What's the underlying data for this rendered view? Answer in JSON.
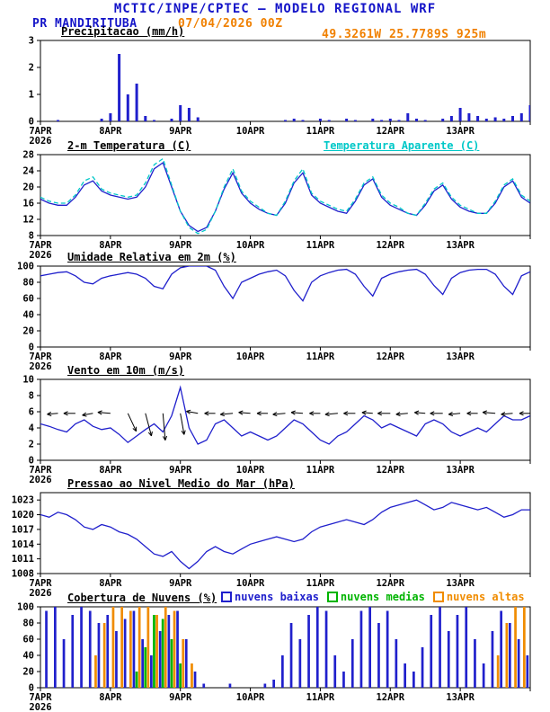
{
  "header": {
    "title": "MCTIC/INPE/CPTEC — MODELO REGIONAL WRF",
    "station": "PR MANDIRITUBA",
    "run_datetime": "07/04/2026 00Z",
    "location": "49.3261W 25.7789S 925m"
  },
  "colors": {
    "title_blue": "#1414c8",
    "accent_orange": "#f08000",
    "line_blue": "#2020cc",
    "apparent_cyan": "#00c8c8",
    "cloud_low_blue": "#2020cc",
    "cloud_mid_green": "#00b400",
    "cloud_high_orange": "#f08c00",
    "axis_black": "#000000"
  },
  "x_axis": {
    "tick_labels": [
      "7APR",
      "8APR",
      "9APR",
      "10APR",
      "11APR",
      "12APR",
      "13APR"
    ],
    "year_label": "2026",
    "hours_total": 168,
    "step_hours": 3
  },
  "chart_data": [
    {
      "id": "precip",
      "type": "bar",
      "title": "Precipitacao (mm/h)",
      "ylim": [
        0,
        3
      ],
      "yticks": [
        0,
        1,
        2,
        3
      ],
      "series": [
        {
          "name": "precipitacao",
          "color": "#2020cc",
          "values": [
            0,
            0,
            0.05,
            0,
            0,
            0,
            0,
            0.1,
            0.3,
            2.5,
            1,
            1.4,
            0.2,
            0.05,
            0,
            0.1,
            0.6,
            0.5,
            0.15,
            0,
            0,
            0,
            0,
            0,
            0,
            0,
            0,
            0,
            0.05,
            0.1,
            0.05,
            0,
            0.1,
            0.05,
            0,
            0.1,
            0.05,
            0,
            0.1,
            0.05,
            0.1,
            0.05,
            0.3,
            0.1,
            0.05,
            0,
            0.1,
            0.2,
            0.5,
            0.3,
            0.2,
            0.1,
            0.15,
            0.1,
            0.2,
            0.3,
            0.6
          ]
        }
      ]
    },
    {
      "id": "temp2m",
      "type": "line",
      "title": "2-m Temperatura (C)",
      "right_title": "Temperatura Aparente (C)",
      "ylim": [
        8,
        28
      ],
      "yticks": [
        8,
        12,
        16,
        20,
        24,
        28
      ],
      "series": [
        {
          "name": "temperatura-2m",
          "color": "#2020cc",
          "values": [
            17,
            16,
            15.5,
            15.5,
            17.5,
            20.5,
            21.5,
            19,
            18,
            17.5,
            17,
            17.5,
            20,
            24.5,
            26,
            20,
            14,
            10.5,
            9,
            10,
            14,
            19.5,
            23.5,
            18.5,
            16,
            14.5,
            13.5,
            13,
            16,
            21,
            23.5,
            18,
            16,
            15,
            14,
            13.5,
            16.5,
            20.5,
            22,
            17.5,
            15.5,
            14.5,
            13.5,
            13,
            15.5,
            19,
            20.5,
            17,
            15,
            14,
            13.5,
            13.5,
            16,
            20,
            21.5,
            17.5,
            16
          ]
        },
        {
          "name": "temperatura-aparente",
          "color": "#00c8c8",
          "dash": "5 3",
          "values": [
            17.5,
            16.5,
            16,
            16,
            18,
            21.5,
            22.5,
            19.5,
            18.5,
            18,
            17.5,
            18,
            21,
            25.5,
            27,
            20.5,
            14,
            10,
            8.5,
            9.5,
            14,
            20,
            24.5,
            19,
            16.5,
            15,
            13.5,
            13,
            16.5,
            21.5,
            24.5,
            18.5,
            16.5,
            15.5,
            14.5,
            14,
            17,
            21,
            22.5,
            18,
            16,
            15,
            13.5,
            13,
            16,
            19.5,
            21,
            17.5,
            15.5,
            14.5,
            13.5,
            13.5,
            16.5,
            20.5,
            22,
            18,
            16.5
          ]
        }
      ]
    },
    {
      "id": "rh2m",
      "type": "line",
      "title": "Umidade Relativa em 2m (%)",
      "ylim": [
        0,
        100
      ],
      "yticks": [
        0,
        20,
        40,
        60,
        80,
        100
      ],
      "series": [
        {
          "name": "umidade-relativa",
          "color": "#2020cc",
          "values": [
            88,
            90,
            92,
            93,
            88,
            80,
            78,
            85,
            88,
            90,
            92,
            90,
            85,
            75,
            72,
            90,
            98,
            100,
            100,
            100,
            95,
            75,
            60,
            80,
            85,
            90,
            93,
            95,
            88,
            70,
            57,
            80,
            88,
            92,
            95,
            96,
            90,
            75,
            63,
            85,
            90,
            93,
            95,
            96,
            90,
            76,
            65,
            85,
            92,
            95,
            96,
            96,
            90,
            75,
            65,
            88,
            93
          ]
        }
      ]
    },
    {
      "id": "wind10m",
      "type": "line",
      "title": "Vento em 10m (m/s)",
      "ylim": [
        0,
        10
      ],
      "yticks": [
        0,
        2,
        4,
        6,
        8,
        10
      ],
      "series": [
        {
          "name": "vento-10m",
          "color": "#2020cc",
          "values": [
            4.5,
            4.2,
            3.8,
            3.5,
            4.5,
            5,
            4.2,
            3.8,
            4,
            3.2,
            2.2,
            3,
            3.8,
            4.5,
            3.5,
            5.5,
            9,
            4,
            2,
            2.5,
            4.5,
            5,
            4,
            3,
            3.5,
            3,
            2.5,
            3,
            4,
            5,
            4.5,
            3.5,
            2.5,
            2,
            3,
            3.5,
            4.5,
            5.5,
            5,
            4,
            4.5,
            4,
            3.5,
            3,
            4.5,
            5,
            4.5,
            3.5,
            3,
            3.5,
            4,
            3.5,
            4.5,
            5.5,
            5,
            5,
            5.5
          ]
        }
      ],
      "barbs": {
        "step_hours": 6,
        "y_value": 5.8,
        "angles": [
          185,
          175,
          180,
          170,
          185,
          65,
          75,
          85,
          80,
          190,
          180,
          175,
          185,
          180,
          175,
          185,
          180,
          175,
          180,
          185,
          180,
          175,
          185,
          180,
          175,
          180,
          185,
          175,
          180
        ],
        "lengths": [
          14,
          12,
          13,
          12,
          14,
          22,
          26,
          30,
          24,
          13,
          12,
          14,
          13,
          12,
          14,
          13,
          12,
          14,
          13,
          12,
          14,
          13,
          12,
          14,
          13,
          12,
          14,
          13,
          12
        ]
      }
    },
    {
      "id": "slp",
      "type": "line",
      "title": "Pressao ao Nivel Medio do Mar (hPa)",
      "ylim": [
        1008,
        1024.5
      ],
      "yticks": [
        1008,
        1011,
        1014,
        1017,
        1020,
        1023
      ],
      "series": [
        {
          "name": "pressao-nivel-mar",
          "color": "#2020cc",
          "values": [
            1020,
            1019.5,
            1020.5,
            1020,
            1019,
            1017.5,
            1017,
            1018,
            1017.5,
            1016.5,
            1016,
            1015,
            1013.5,
            1012,
            1011.5,
            1012.5,
            1010.5,
            1009,
            1010.5,
            1012.5,
            1013.5,
            1012.5,
            1012,
            1013,
            1014,
            1014.5,
            1015,
            1015.5,
            1015,
            1014.5,
            1015,
            1016.5,
            1017.5,
            1018,
            1018.5,
            1019,
            1018.5,
            1018,
            1019,
            1020.5,
            1021.5,
            1022,
            1022.5,
            1023,
            1022,
            1021,
            1021.5,
            1022.5,
            1022,
            1021.5,
            1021,
            1021.5,
            1020.5,
            1019.5,
            1020,
            1021,
            1021
          ]
        }
      ]
    },
    {
      "id": "clouds",
      "type": "bar",
      "title": "Cobertura de Nuvens (%)",
      "ylim": [
        0,
        100
      ],
      "yticks": [
        0,
        20,
        40,
        60,
        80,
        100
      ],
      "legend": [
        {
          "label": "nuvens baixas",
          "color": "#2020cc"
        },
        {
          "label": "nuvens medias",
          "color": "#00b400"
        },
        {
          "label": "nuvens altas",
          "color": "#f08c00"
        }
      ],
      "series": [
        {
          "name": "nuvens-baixas",
          "color": "#2020cc",
          "values": [
            100,
            95,
            100,
            60,
            90,
            100,
            95,
            80,
            90,
            70,
            85,
            95,
            60,
            40,
            70,
            90,
            95,
            60,
            20,
            5,
            0,
            0,
            5,
            0,
            0,
            0,
            5,
            10,
            40,
            80,
            60,
            90,
            100,
            95,
            40,
            20,
            60,
            95,
            100,
            80,
            95,
            60,
            30,
            20,
            50,
            90,
            100,
            70,
            90,
            100,
            60,
            30,
            70,
            95,
            80,
            60,
            40
          ]
        },
        {
          "name": "nuvens-medias",
          "color": "#00b400",
          "values": [
            0,
            0,
            0,
            0,
            0,
            0,
            0,
            0,
            0,
            0,
            0,
            20,
            50,
            90,
            85,
            60,
            30,
            0,
            0,
            0,
            0,
            0,
            0,
            0,
            0,
            0,
            0,
            0,
            0,
            0,
            0,
            0,
            0,
            0,
            0,
            0,
            0,
            0,
            0,
            0,
            0,
            0,
            0,
            0,
            0,
            0,
            0,
            0,
            0,
            0,
            0,
            0,
            0,
            0,
            0,
            0,
            0
          ]
        },
        {
          "name": "nuvens-altas",
          "color": "#f08c00",
          "values": [
            0,
            0,
            0,
            0,
            0,
            0,
            40,
            80,
            100,
            100,
            95,
            100,
            100,
            90,
            100,
            95,
            60,
            30,
            0,
            0,
            0,
            0,
            0,
            0,
            0,
            0,
            0,
            0,
            0,
            0,
            0,
            0,
            0,
            0,
            0,
            0,
            0,
            0,
            0,
            0,
            0,
            0,
            0,
            0,
            0,
            0,
            0,
            0,
            0,
            0,
            0,
            0,
            40,
            80,
            100,
            100,
            100
          ]
        }
      ]
    }
  ]
}
